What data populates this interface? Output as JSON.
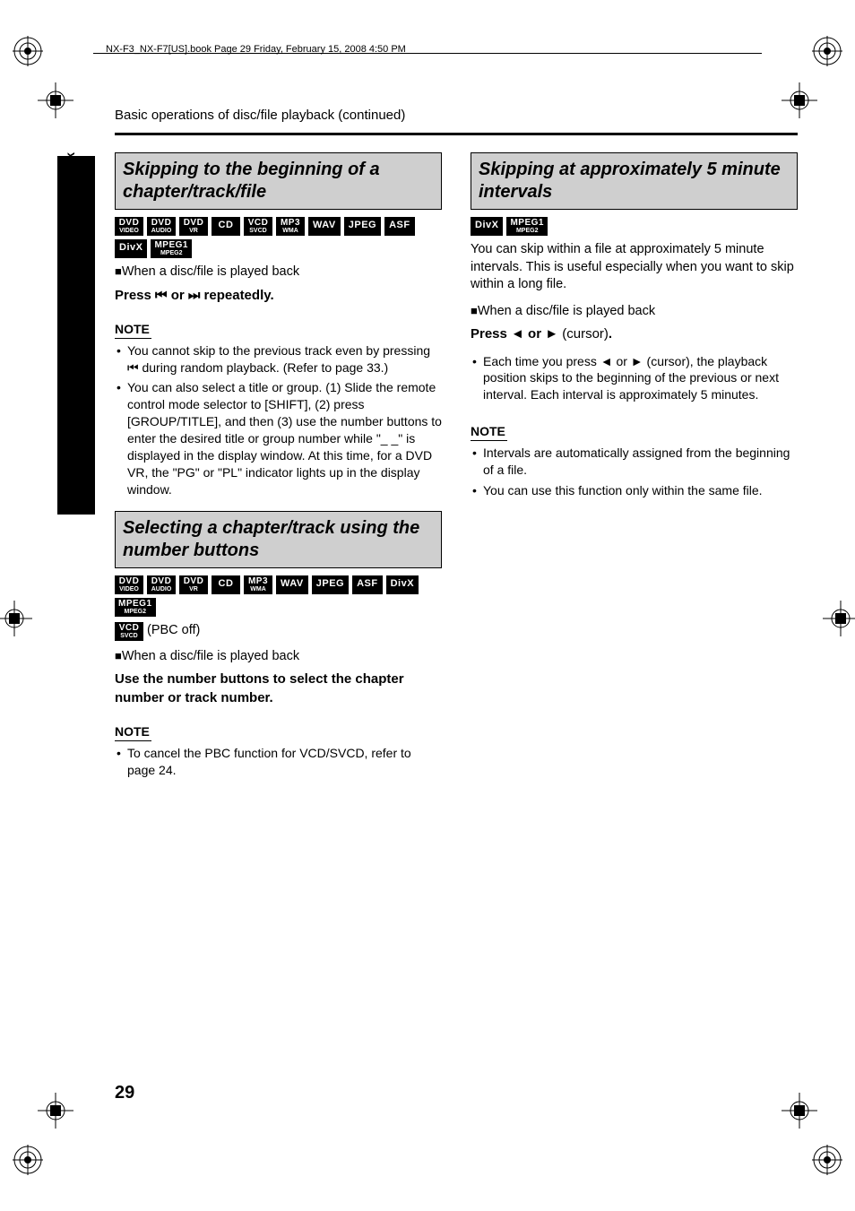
{
  "header": {
    "running": "NX-F3_NX-F7[US].book  Page 29  Friday, February 15, 2008  4:50 PM"
  },
  "sidebar": {
    "label": "Basic operations of disc/file playback"
  },
  "section": {
    "title": "Basic operations of disc/file playback (continued)"
  },
  "page_number": "29",
  "left": {
    "h1": "Skipping to the beginning of a chapter/track/file",
    "badges1": [
      {
        "l1": "DVD",
        "l2": "VIDEO"
      },
      {
        "l1": "DVD",
        "l2": "AUDIO"
      },
      {
        "l1": "DVD",
        "l2": "VR"
      },
      {
        "l1": "CD",
        "l2": ""
      },
      {
        "l1": "VCD",
        "l2": "SVCD"
      },
      {
        "l1": "MP3",
        "l2": "WMA"
      },
      {
        "l1": "WAV",
        "l2": ""
      },
      {
        "l1": "JPEG",
        "l2": ""
      },
      {
        "l1": "ASF",
        "l2": ""
      },
      {
        "l1": "DivX",
        "l2": ""
      },
      {
        "l1": "MPEG1",
        "l2": "MPEG2"
      }
    ],
    "when": "When a disc/file is played back",
    "press": "Press ⏮ or ⏭ repeatedly.",
    "note_label": "NOTE",
    "notes": [
      "You cannot skip to the previous track even by pressing ⏮ during random playback. (Refer to page 33.)",
      "You can also select a title or group. (1) Slide the remote control mode selector to [SHIFT], (2) press [GROUP/TITLE], and then (3) use the number buttons to enter the desired title or group number while \"_ _\" is displayed in the display window. At this time, for a DVD VR, the \"PG\" or \"PL\" indicator lights up in the display window."
    ],
    "h2": "Selecting a chapter/track using the number buttons",
    "badges2": [
      {
        "l1": "DVD",
        "l2": "VIDEO"
      },
      {
        "l1": "DVD",
        "l2": "AUDIO"
      },
      {
        "l1": "DVD",
        "l2": "VR"
      },
      {
        "l1": "CD",
        "l2": ""
      },
      {
        "l1": "MP3",
        "l2": "WMA"
      },
      {
        "l1": "WAV",
        "l2": ""
      },
      {
        "l1": "JPEG",
        "l2": ""
      },
      {
        "l1": "ASF",
        "l2": ""
      },
      {
        "l1": "DivX",
        "l2": ""
      },
      {
        "l1": "MPEG1",
        "l2": "MPEG2"
      }
    ],
    "pbc_badge": {
      "l1": "VCD",
      "l2": "SVCD"
    },
    "pbc_suffix": "(PBC off)",
    "when2": "When a disc/file is played back",
    "use": "Use the number buttons to select the chapter number or track number.",
    "note2_label": "NOTE",
    "notes2": [
      "To cancel the PBC function for VCD/SVCD, refer to page 24."
    ]
  },
  "right": {
    "h1": "Skipping at approximately 5 minute intervals",
    "badges": [
      {
        "l1": "DivX",
        "l2": ""
      },
      {
        "l1": "MPEG1",
        "l2": "MPEG2"
      }
    ],
    "lead": "You can skip within a file at approximately 5 minute intervals. This is useful especially when you want to skip within a long file.",
    "when": "When a disc/file is played back",
    "press_prefix": "Press ◄ or ► ",
    "press_cursor": "(cursor)",
    "press_suffix": ".",
    "bullets": [
      "Each time you press ◄ or ► (cursor), the playback position skips to the beginning of the previous or next interval. Each interval is approximately 5 minutes."
    ],
    "note_label": "NOTE",
    "notes": [
      "Intervals are automatically assigned from the beginning of a file.",
      "You can use this function only within the same file."
    ]
  },
  "colors": {
    "heading_bg": "#cfcfcf",
    "badge_bg": "#000000",
    "badge_fg": "#ffffff",
    "text": "#000000",
    "background": "#ffffff"
  }
}
